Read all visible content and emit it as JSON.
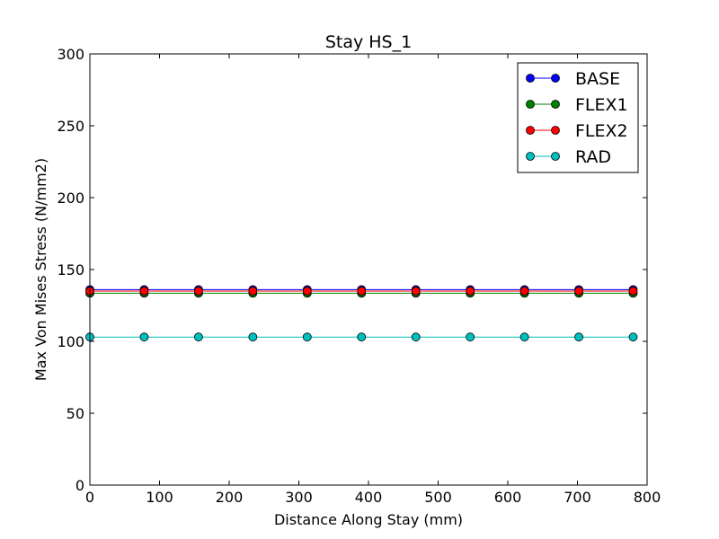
{
  "chart_data": {
    "type": "line",
    "title": "Stay HS_1",
    "xlabel": "Distance Along Stay (mm)",
    "ylabel": "Max Von Mises Stress (N/mm2)",
    "xlim": [
      0,
      800
    ],
    "ylim": [
      0,
      300
    ],
    "xticks": [
      0,
      100,
      200,
      300,
      400,
      500,
      600,
      700,
      800
    ],
    "yticks": [
      0,
      50,
      100,
      150,
      200,
      250,
      300
    ],
    "grid": false,
    "legend_position": "top-right",
    "x": [
      0,
      78,
      156,
      234,
      312,
      390,
      468,
      546,
      624,
      702,
      780
    ],
    "series": [
      {
        "name": "BASE",
        "color": "#0000ff",
        "values": [
          136,
          136,
          136,
          136,
          136,
          136,
          136,
          136,
          136,
          136,
          136
        ]
      },
      {
        "name": "FLEX1",
        "color": "#008000",
        "values": [
          133.5,
          133.5,
          133.5,
          133.5,
          133.5,
          133.5,
          133.5,
          133.5,
          133.5,
          133.5,
          133.5
        ]
      },
      {
        "name": "FLEX2",
        "color": "#ff0000",
        "values": [
          135,
          135,
          135,
          135,
          135,
          135,
          135,
          135,
          135,
          135,
          135
        ]
      },
      {
        "name": "RAD",
        "color": "#00bfbf",
        "values": [
          103,
          103,
          103,
          103,
          103,
          103,
          103,
          103,
          103,
          103,
          103
        ]
      }
    ]
  }
}
